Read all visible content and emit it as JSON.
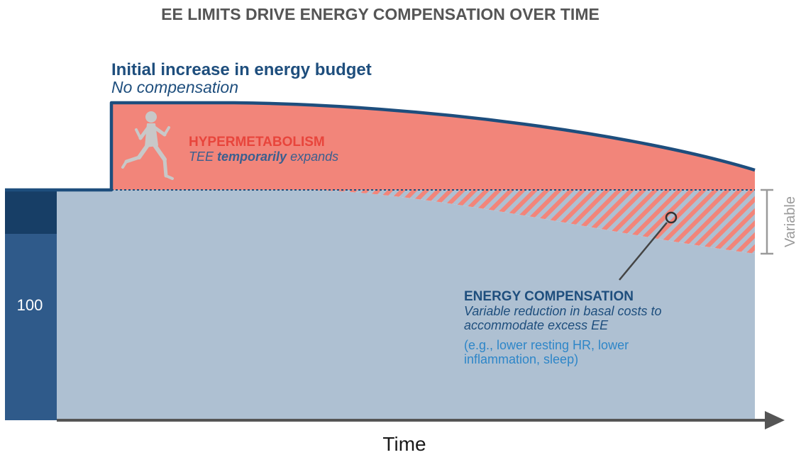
{
  "title": "EE LIMITS DRIVE ENERGY COMPENSATION OVER TIME",
  "budget": {
    "title": "Initial increase in energy budget",
    "subtitle": "No compensation"
  },
  "hypermetabolism": {
    "title": "HYPERMETABOLISM",
    "subtitle_pre": "TEE ",
    "subtitle_emph": "temporarily",
    "subtitle_post": " expands"
  },
  "compensation": {
    "title": "ENERGY COMPENSATION",
    "desc_line1": "Variable reduction in basal costs to",
    "desc_line2": "accommodate excess EE",
    "example_line1": "(e.g., lower resting HR, lower",
    "example_line2": "inflammation, sleep)"
  },
  "variable_label": "Variable",
  "baseline_label": "100",
  "xaxis_label": "Time",
  "icons": {
    "runner": "runner-icon",
    "axis_arrow": "arrow-right-icon"
  },
  "colors": {
    "baseline_dark": "#173e66",
    "baseline_mid": "#2f5a8a",
    "basal_area": "#aec0d2",
    "hyper_area": "#f2857a",
    "hyper_text": "#e8453c",
    "budget_line": "#1e4e7d",
    "axis": "#555555",
    "bracket": "#9a9a9a"
  }
}
